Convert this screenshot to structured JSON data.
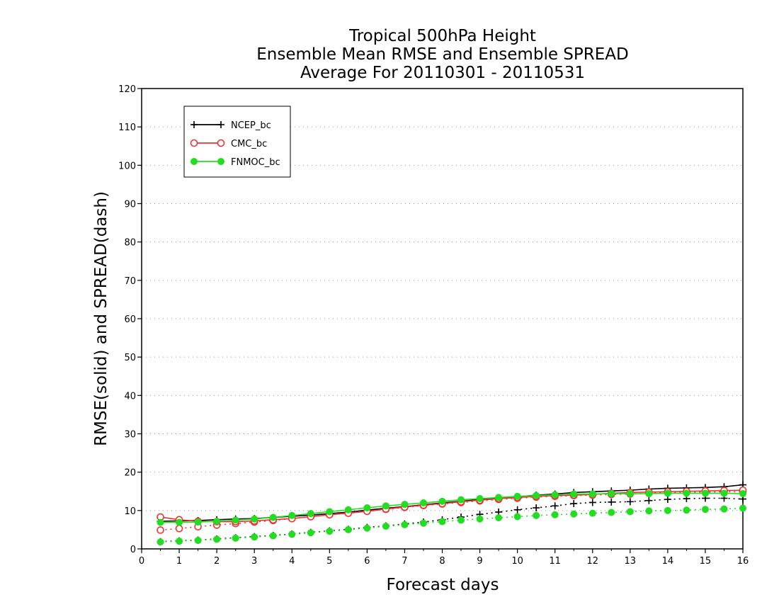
{
  "chart_data": {
    "type": "line",
    "title_lines": [
      "Tropical 500hPa Height",
      "Ensemble Mean RMSE and Ensemble SPREAD",
      "Average For 20110301 - 20110531"
    ],
    "xlabel": "Forecast days",
    "ylabel": "RMSE(solid) and SPREAD(dash)",
    "xlim": [
      0,
      16
    ],
    "ylim": [
      0,
      120
    ],
    "x_ticks": [
      0,
      1,
      2,
      3,
      4,
      5,
      6,
      7,
      8,
      9,
      10,
      11,
      12,
      13,
      14,
      15,
      16
    ],
    "y_ticks": [
      0,
      10,
      20,
      30,
      40,
      50,
      60,
      70,
      80,
      90,
      100,
      110,
      120
    ],
    "grid": "horizontal dotted",
    "legend_position": "top-left",
    "x": [
      0.5,
      1,
      1.5,
      2,
      2.5,
      3,
      3.5,
      4,
      4.5,
      5,
      5.5,
      6,
      6.5,
      7,
      7.5,
      8,
      8.5,
      9,
      9.5,
      10,
      10.5,
      11,
      11.5,
      12,
      12.5,
      13,
      13.5,
      14,
      14.5,
      15,
      15.5,
      16
    ],
    "series": [
      {
        "name": "NCEP_bc",
        "color": "#000000",
        "marker": "plus",
        "rmse": [
          7.2,
          7.3,
          7.4,
          7.6,
          7.8,
          7.9,
          8.2,
          8.5,
          8.8,
          9.2,
          9.6,
          10.1,
          10.6,
          11.0,
          11.5,
          12.0,
          12.4,
          12.9,
          13.3,
          13.6,
          14.0,
          14.3,
          14.7,
          14.9,
          15.1,
          15.3,
          15.6,
          15.8,
          15.9,
          16.0,
          16.2,
          16.7
        ],
        "spread": [
          1.9,
          2.1,
          2.3,
          2.6,
          2.9,
          3.2,
          3.5,
          3.9,
          4.3,
          4.7,
          5.1,
          5.6,
          6.0,
          6.5,
          7.0,
          7.6,
          8.3,
          9.0,
          9.6,
          10.2,
          10.7,
          11.2,
          11.8,
          12.1,
          12.2,
          12.3,
          12.6,
          12.9,
          13.1,
          13.2,
          13.2,
          13.0
        ]
      },
      {
        "name": "CMC_bc",
        "color": "#ee3333",
        "marker": "open-circle",
        "rmse": [
          8.3,
          7.6,
          7.2,
          7.1,
          7.1,
          7.3,
          7.6,
          7.9,
          8.4,
          8.9,
          9.3,
          9.8,
          10.4,
          10.9,
          11.4,
          11.8,
          12.3,
          12.7,
          13.1,
          13.4,
          13.7,
          13.9,
          14.0,
          14.2,
          14.5,
          14.7,
          14.8,
          14.9,
          15.0,
          15.1,
          15.2,
          15.3
        ],
        "spread": [
          4.9,
          5.3,
          5.8,
          6.2,
          6.6,
          7.0,
          7.4,
          7.9,
          8.4,
          8.9,
          9.3,
          9.8,
          10.3,
          10.8,
          11.3,
          11.7,
          12.1,
          12.5,
          12.9,
          13.2,
          13.5,
          13.7,
          13.9,
          14.0,
          14.2,
          14.3,
          14.5,
          14.7,
          14.8,
          14.8,
          14.9,
          14.9
        ]
      },
      {
        "name": "FNMOC_bc",
        "color": "#22dd22",
        "marker": "filled-circle",
        "rmse": [
          6.9,
          6.9,
          7.0,
          7.2,
          7.5,
          7.8,
          8.2,
          8.7,
          9.2,
          9.7,
          10.2,
          10.7,
          11.2,
          11.6,
          12.0,
          12.4,
          12.8,
          13.1,
          13.4,
          13.7,
          13.9,
          14.1,
          14.3,
          14.3,
          14.4,
          14.4,
          14.4,
          14.5,
          14.5,
          14.5,
          14.5,
          14.4
        ],
        "spread": [
          1.8,
          2.0,
          2.2,
          2.5,
          2.8,
          3.1,
          3.4,
          3.8,
          4.2,
          4.6,
          5.0,
          5.4,
          5.9,
          6.3,
          6.7,
          7.1,
          7.5,
          7.8,
          8.1,
          8.4,
          8.7,
          8.9,
          9.1,
          9.3,
          9.5,
          9.7,
          9.9,
          10.0,
          10.1,
          10.3,
          10.4,
          10.6
        ]
      }
    ]
  }
}
